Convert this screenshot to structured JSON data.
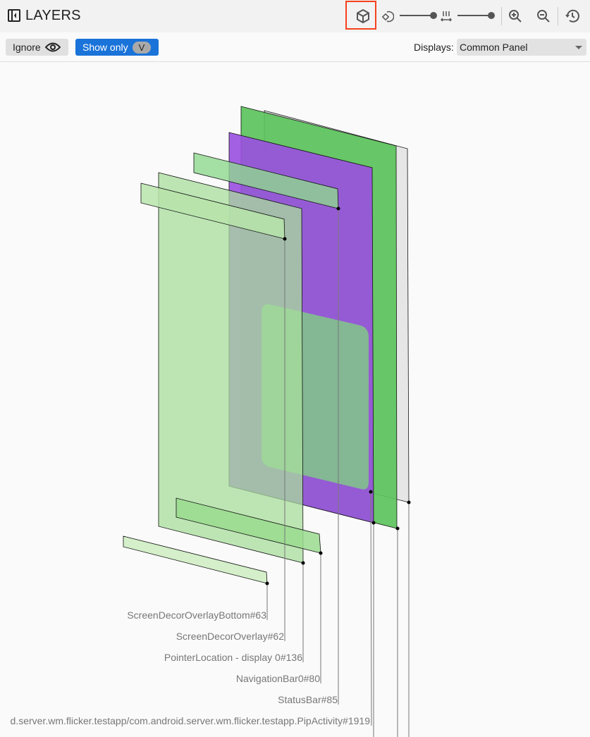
{
  "header": {
    "title": "LAYERS",
    "icons": [
      "panel-toggle-icon",
      "cube-3d-icon",
      "rotation-icon",
      "spacing-icon",
      "zoom-in-icon",
      "zoom-out-icon",
      "reset-history-icon"
    ],
    "rotation_slider": 1.0,
    "spacing_slider": 1.0
  },
  "toolbar": {
    "ignore_label": "Ignore",
    "show_only_label": "Show only",
    "show_only_chip": "V",
    "displays_label": "Displays:",
    "displays_value": "Common Panel"
  },
  "colors": {
    "selection_highlight": "#f4421c",
    "show_only_button": "#1a73d9"
  },
  "layers": [
    {
      "label": "ScreenDecorOverlayBottom#63"
    },
    {
      "label": "ScreenDecorOverlay#62"
    },
    {
      "label": "PointerLocation - display 0#136"
    },
    {
      "label": "NavigationBar0#80"
    },
    {
      "label": "StatusBar#85"
    },
    {
      "label": "d.server.wm.flicker.testapp/com.android.server.wm.flicker.testapp.PipActivity#1919"
    }
  ]
}
